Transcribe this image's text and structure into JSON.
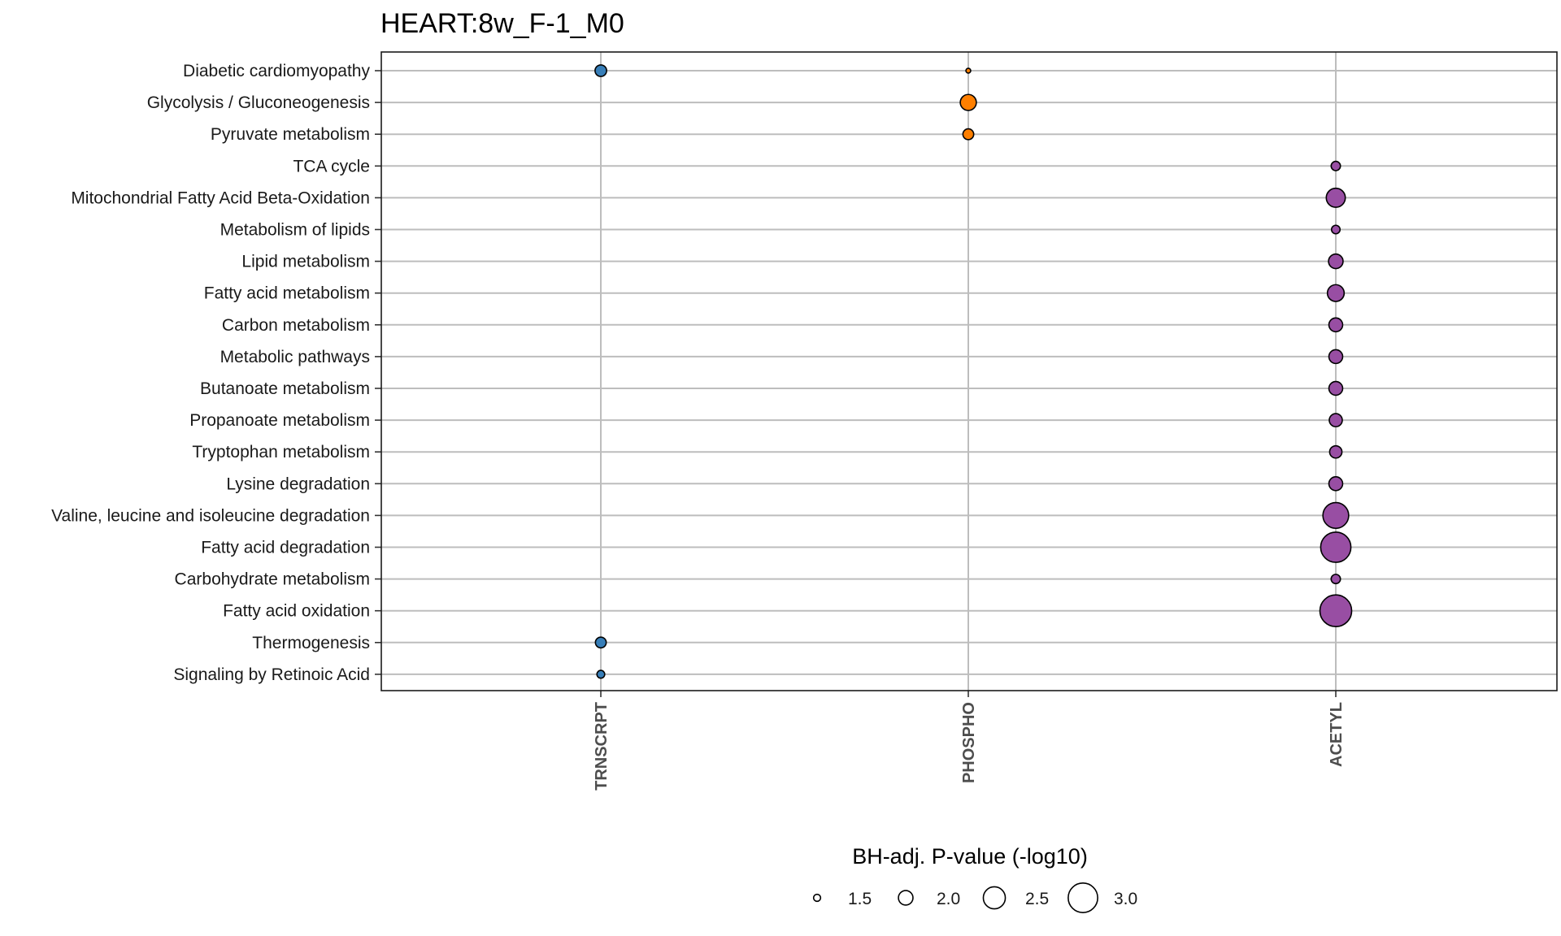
{
  "chart_data": {
    "type": "scatter",
    "title": "HEART:8w_F-1_M0",
    "categories_x": [
      "TRNSCRPT",
      "PHOSPHO",
      "ACETYL"
    ],
    "categories_y": [
      "Diabetic cardiomyopathy",
      "Glycolysis / Gluconeogenesis",
      "Pyruvate metabolism",
      "TCA cycle",
      "Mitochondrial Fatty Acid Beta-Oxidation",
      "Metabolism of lipids",
      "Lipid metabolism",
      "Fatty acid metabolism",
      "Carbon metabolism",
      "Metabolic pathways",
      "Butanoate metabolism",
      "Propanoate metabolism",
      "Tryptophan metabolism",
      "Lysine degradation",
      "Valine, leucine and isoleucine degradation",
      "Fatty acid degradation",
      "Carbohydrate metabolism",
      "Fatty acid oxidation",
      "Thermogenesis",
      "Signaling by Retinoic Acid"
    ],
    "colors": {
      "TRNSCRPT": "#377eb8",
      "PHOSPHO": "#ff7f00",
      "ACETYL": "#984ea3"
    },
    "points": [
      {
        "x": "TRNSCRPT",
        "y": "Diabetic cardiomyopathy",
        "size": 1.8
      },
      {
        "x": "PHOSPHO",
        "y": "Diabetic cardiomyopathy",
        "size": 1.35
      },
      {
        "x": "PHOSPHO",
        "y": "Glycolysis / Gluconeogenesis",
        "size": 2.1
      },
      {
        "x": "PHOSPHO",
        "y": "Pyruvate metabolism",
        "size": 1.75
      },
      {
        "x": "ACETYL",
        "y": "TCA cycle",
        "size": 1.65
      },
      {
        "x": "ACETYL",
        "y": "Mitochondrial Fatty Acid Beta-Oxidation",
        "size": 2.3
      },
      {
        "x": "ACETYL",
        "y": "Metabolism of lipids",
        "size": 1.6
      },
      {
        "x": "ACETYL",
        "y": "Lipid metabolism",
        "size": 2.0
      },
      {
        "x": "ACETYL",
        "y": "Fatty acid metabolism",
        "size": 2.15
      },
      {
        "x": "ACETYL",
        "y": "Carbon metabolism",
        "size": 1.95
      },
      {
        "x": "ACETYL",
        "y": "Metabolic pathways",
        "size": 1.95
      },
      {
        "x": "ACETYL",
        "y": "Butanoate metabolism",
        "size": 1.95
      },
      {
        "x": "ACETYL",
        "y": "Propanoate metabolism",
        "size": 1.9
      },
      {
        "x": "ACETYL",
        "y": "Tryptophan metabolism",
        "size": 1.85
      },
      {
        "x": "ACETYL",
        "y": "Lysine degradation",
        "size": 1.95
      },
      {
        "x": "ACETYL",
        "y": "Valine, leucine and isoleucine degradation",
        "size": 2.75
      },
      {
        "x": "ACETYL",
        "y": "Fatty acid degradation",
        "size": 3.05
      },
      {
        "x": "ACETYL",
        "y": "Carbohydrate metabolism",
        "size": 1.65
      },
      {
        "x": "ACETYL",
        "y": "Fatty acid oxidation",
        "size": 3.15
      },
      {
        "x": "TRNSCRPT",
        "y": "Thermogenesis",
        "size": 1.75
      },
      {
        "x": "TRNSCRPT",
        "y": "Signaling by Retinoic Acid",
        "size": 1.55
      }
    ],
    "legend": {
      "title": "BH-adj. P-value (-log10)",
      "position": "bottom",
      "values": [
        1.5,
        2.0,
        2.5,
        3.0
      ],
      "labels": [
        "1.5",
        "2.0",
        "2.5",
        "3.0"
      ]
    },
    "grid": true
  }
}
